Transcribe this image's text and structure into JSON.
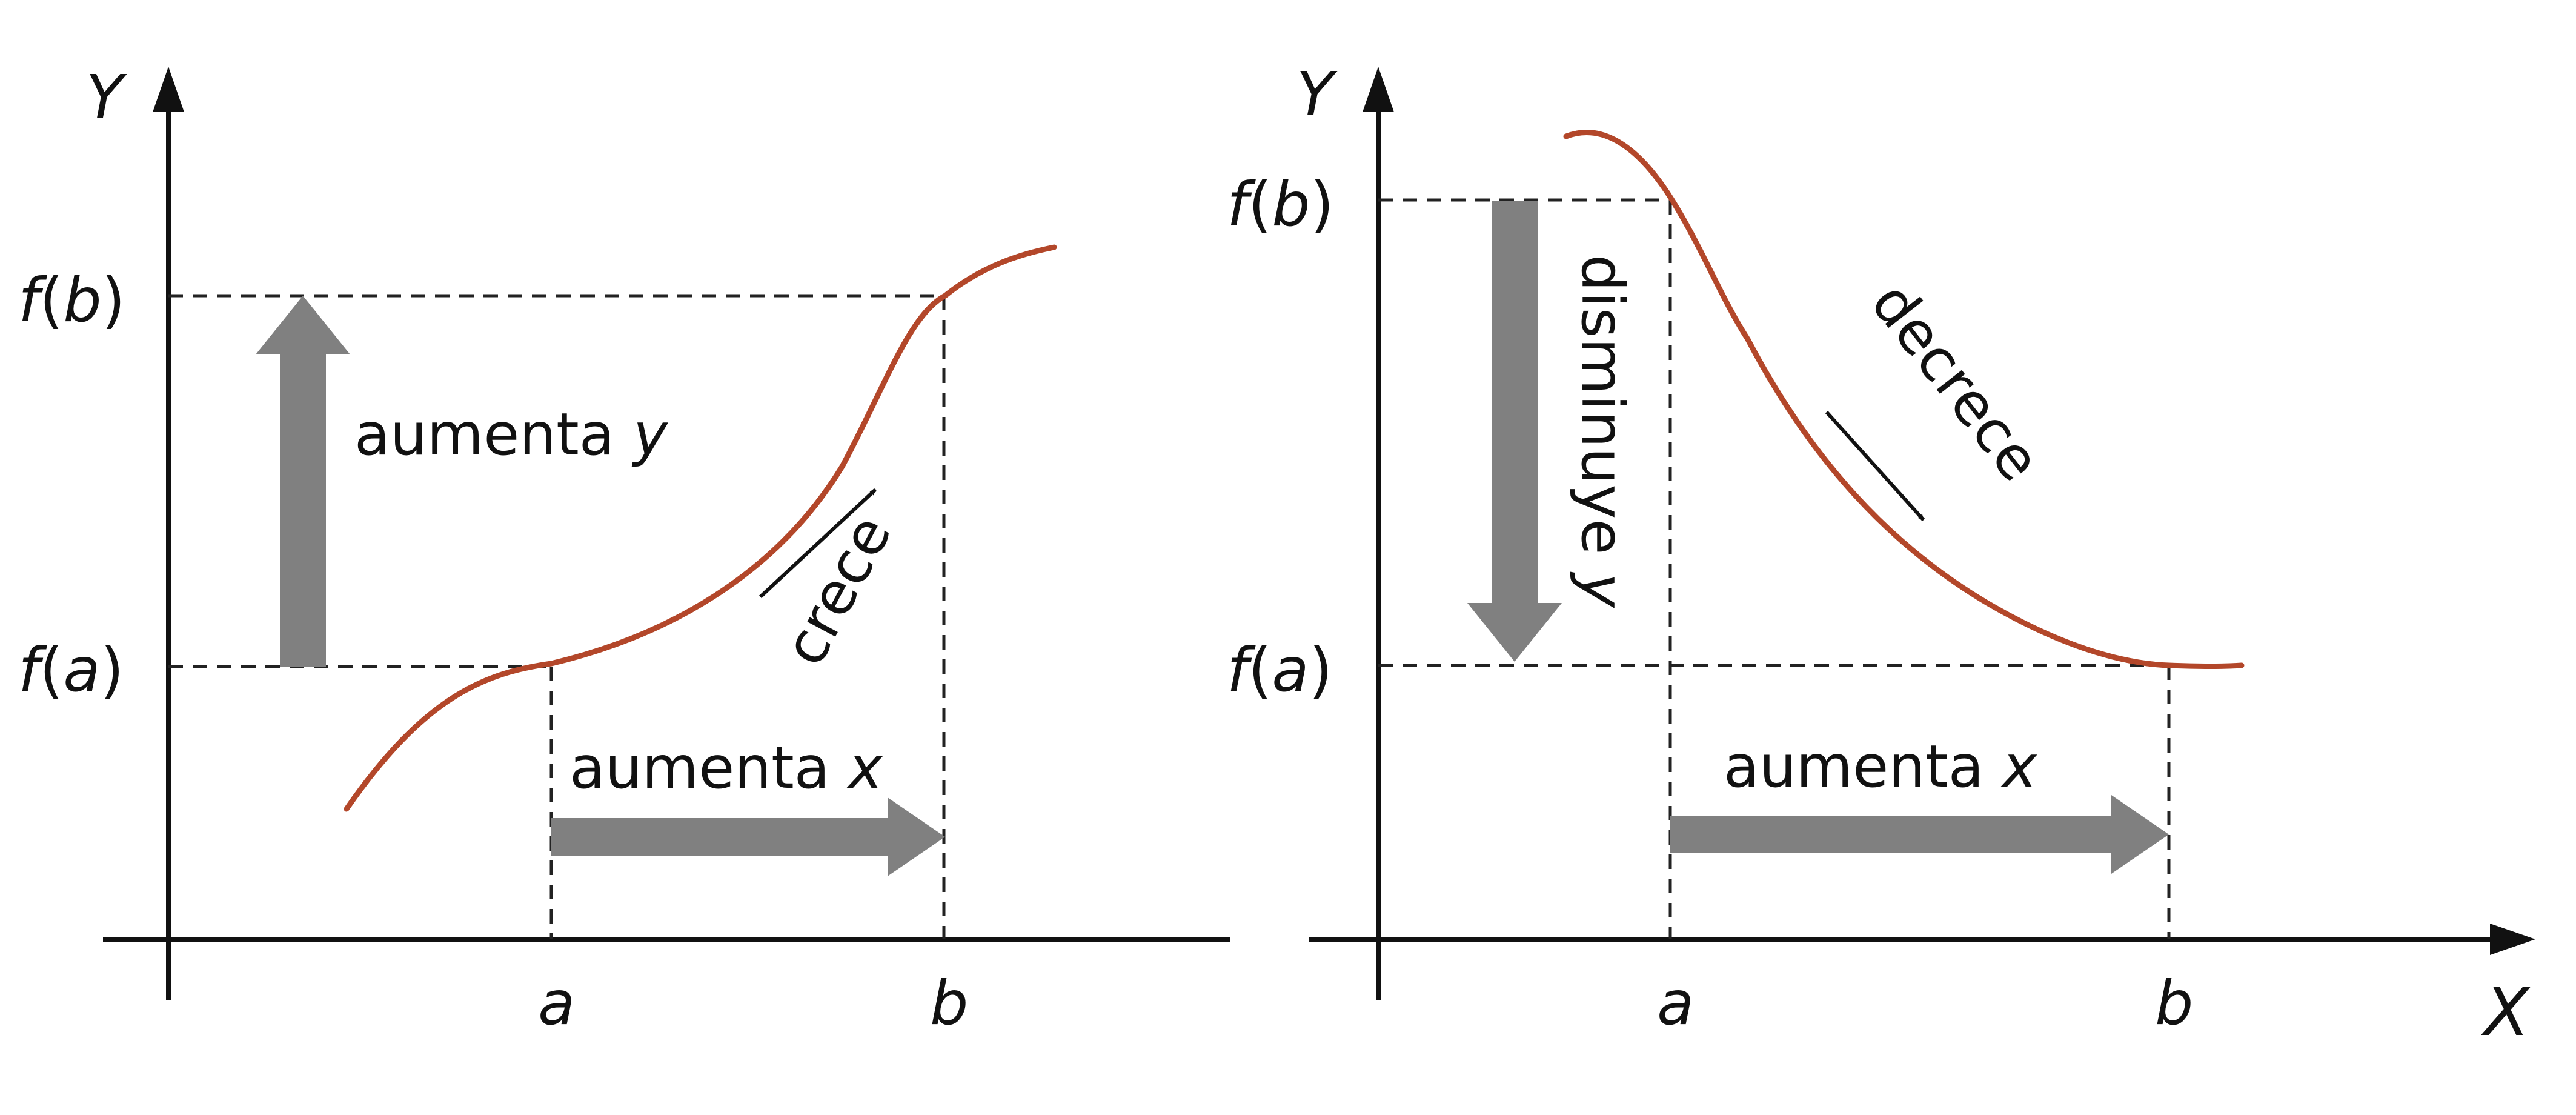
{
  "colors": {
    "curve": "#b3472a",
    "arrow_fill": "#808080",
    "axis": "#111111",
    "guide": "#222222",
    "background": "#ffffff"
  },
  "left_panel": {
    "y_axis_label": "Y",
    "fb_label": {
      "prefix": "f",
      "open": "(",
      "var": "b",
      "close": ")"
    },
    "fa_label": {
      "prefix": "f",
      "open": "(",
      "var": "a",
      "close": ")"
    },
    "a_tick": "a",
    "b_tick": "b",
    "up_arrow_text": "aumenta",
    "up_arrow_var": "y",
    "right_arrow_text": "aumenta",
    "right_arrow_var": "x",
    "curve_label": "crece"
  },
  "right_panel": {
    "y_axis_label": "Y",
    "x_axis_label": "X",
    "fb_label": {
      "prefix": "f",
      "open": "(",
      "var": "b",
      "close": ")"
    },
    "fa_label": {
      "prefix": "f",
      "open": "(",
      "var": "a",
      "close": ")"
    },
    "a_tick": "a",
    "b_tick": "b",
    "down_arrow_text": "disminuye",
    "down_arrow_var": "y",
    "right_arrow_text": "aumenta",
    "right_arrow_var": "x",
    "curve_label": "decrece"
  }
}
